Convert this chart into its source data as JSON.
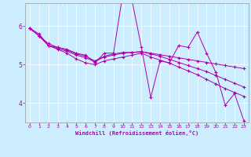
{
  "xlabel": "Windchill (Refroidissement éolien,°C)",
  "background_color": "#cceeff",
  "line_color": "#aa00aa",
  "xlim": [
    -0.5,
    23.5
  ],
  "ylim": [
    3.5,
    6.6
  ],
  "yticks": [
    4,
    5,
    6
  ],
  "xticks": [
    0,
    1,
    2,
    3,
    4,
    5,
    6,
    7,
    8,
    9,
    10,
    11,
    12,
    13,
    14,
    15,
    16,
    17,
    18,
    19,
    20,
    21,
    22,
    23
  ],
  "series": [
    [
      5.95,
      5.8,
      5.5,
      5.45,
      5.4,
      5.3,
      5.25,
      5.05,
      5.3,
      5.3,
      6.85,
      6.65,
      5.45,
      4.15,
      5.1,
      5.05,
      5.5,
      5.45,
      5.85,
      5.3,
      4.8,
      3.95,
      4.25,
      3.55
    ],
    [
      5.95,
      5.75,
      5.55,
      5.45,
      5.38,
      5.28,
      5.22,
      5.1,
      5.22,
      5.28,
      5.32,
      5.32,
      5.34,
      5.3,
      5.26,
      5.22,
      5.18,
      5.14,
      5.1,
      5.06,
      5.02,
      4.98,
      4.94,
      4.9
    ],
    [
      5.95,
      5.75,
      5.5,
      5.42,
      5.35,
      5.25,
      5.18,
      5.08,
      5.2,
      5.25,
      5.3,
      5.32,
      5.34,
      5.28,
      5.22,
      5.14,
      5.06,
      4.98,
      4.9,
      4.82,
      4.72,
      4.62,
      4.52,
      4.42
    ],
    [
      5.95,
      5.75,
      5.5,
      5.4,
      5.3,
      5.15,
      5.05,
      5.0,
      5.1,
      5.15,
      5.2,
      5.25,
      5.3,
      5.2,
      5.12,
      5.04,
      4.94,
      4.84,
      4.74,
      4.62,
      4.5,
      4.38,
      4.28,
      4.18
    ]
  ]
}
